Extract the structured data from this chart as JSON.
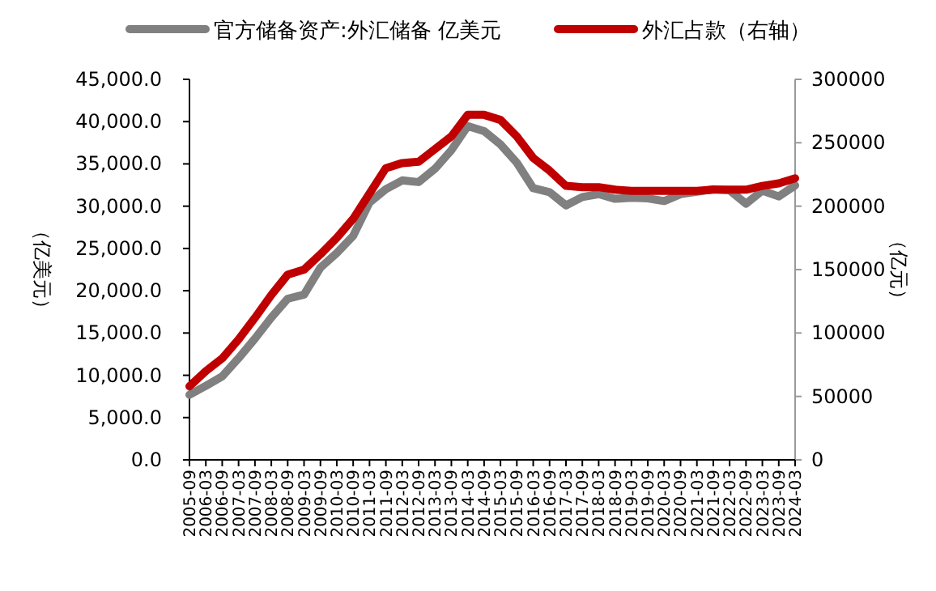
{
  "chart_data": {
    "type": "line",
    "legend": "top",
    "grid": false,
    "ylabel": "（亿美元）",
    "y2label": "（亿元）",
    "categories": [
      "2005-09",
      "2006-03",
      "2006-09",
      "2007-03",
      "2007-09",
      "2008-03",
      "2008-09",
      "2009-03",
      "2009-09",
      "2010-03",
      "2010-09",
      "2011-03",
      "2011-09",
      "2012-03",
      "2012-09",
      "2013-03",
      "2013-09",
      "2014-03",
      "2014-09",
      "2015-03",
      "2015-09",
      "2016-03",
      "2016-09",
      "2017-03",
      "2017-09",
      "2018-03",
      "2018-09",
      "2019-03",
      "2019-09",
      "2020-03",
      "2020-09",
      "2021-03",
      "2021-09",
      "2022-03",
      "2022-09",
      "2023-03",
      "2023-09",
      "2024-03"
    ],
    "ylim": [
      0,
      45000
    ],
    "yticks": [
      {
        "value": 0,
        "label": "0.0"
      },
      {
        "value": 5000,
        "label": "5,000.0"
      },
      {
        "value": 10000,
        "label": "10,000.0"
      },
      {
        "value": 15000,
        "label": "15,000.0"
      },
      {
        "value": 20000,
        "label": "20,000.0"
      },
      {
        "value": 25000,
        "label": "25,000.0"
      },
      {
        "value": 30000,
        "label": "30,000.0"
      },
      {
        "value": 35000,
        "label": "35,000.0"
      },
      {
        "value": 40000,
        "label": "40,000.0"
      },
      {
        "value": 45000,
        "label": "45,000.0"
      }
    ],
    "y2lim": [
      0,
      300000
    ],
    "y2ticks": [
      0,
      50000,
      100000,
      150000,
      200000,
      250000,
      300000
    ],
    "series": [
      {
        "name": "官方储备资产:外汇储备 亿美元",
        "color": "#808080",
        "values": [
          7690,
          8751,
          9879,
          12020,
          14336,
          16822,
          19056,
          19537,
          22726,
          24471,
          26483,
          30447,
          32017,
          33050,
          32851,
          34426,
          36627,
          39480,
          38877,
          37300,
          35141,
          32126,
          31664,
          30091,
          31085,
          31428,
          30870,
          30988,
          30924,
          30606,
          31426,
          31700,
          32006,
          31880,
          30290,
          31838,
          31151,
          32457
        ]
      },
      {
        "name": "外汇占款（右轴）",
        "color": "#c00000",
        "axis": "y2",
        "values": [
          58000,
          70000,
          80000,
          95000,
          112000,
          130000,
          146000,
          150000,
          162000,
          175000,
          190000,
          210000,
          230000,
          234000,
          235000,
          245000,
          255000,
          272000,
          272000,
          268000,
          255000,
          238000,
          228000,
          216000,
          215000,
          215000,
          213000,
          212000,
          212000,
          212000,
          212000,
          212000,
          213000,
          213000,
          213000,
          216000,
          218000,
          222000
        ]
      }
    ]
  }
}
